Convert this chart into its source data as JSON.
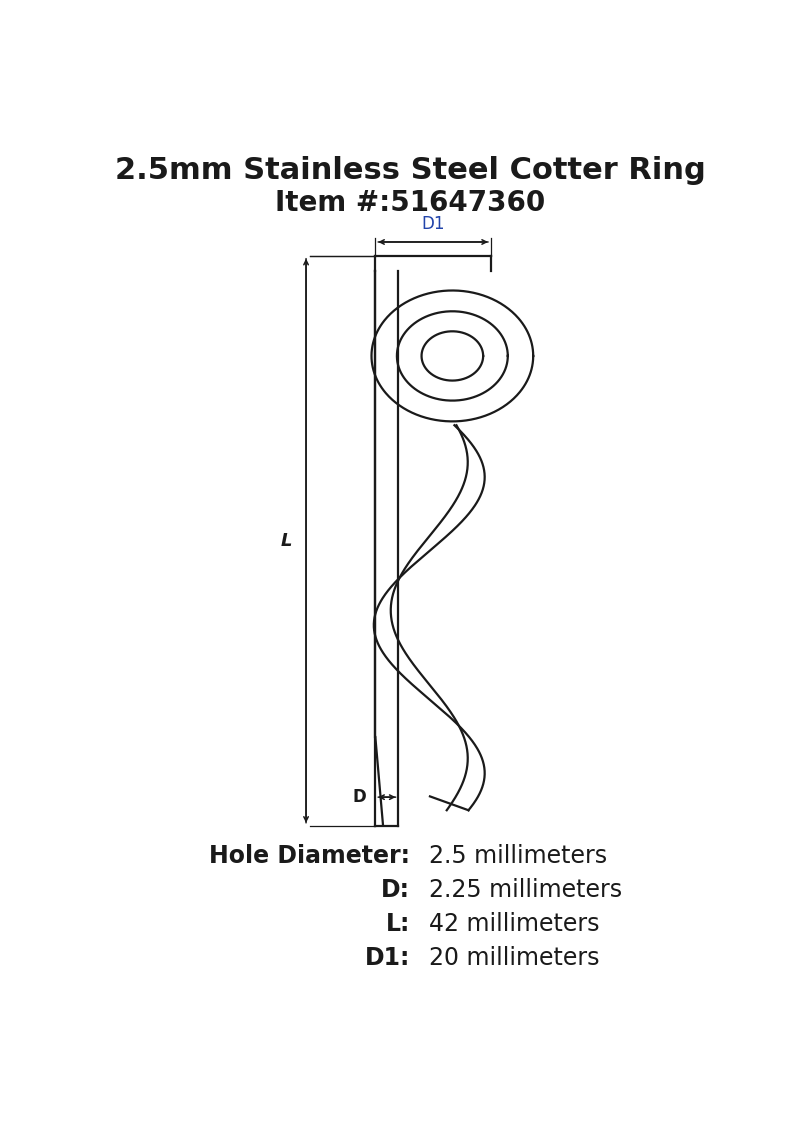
{
  "title_line1": "2.5mm Stainless Steel Cotter Ring",
  "title_line2": "Item #:51647360",
  "title_fontsize": 22,
  "subtitle_fontsize": 20,
  "background_color": "#ffffff",
  "line_color": "#1a1a1a",
  "text_color": "#1a1a1a",
  "dim_label_color": "#2244aa",
  "specs": [
    {
      "label": "Hole Diameter:",
      "value": "2.5 millimeters"
    },
    {
      "label": "D:",
      "value": "2.25 millimeters"
    },
    {
      "label": "L:",
      "value": "42 millimeters"
    },
    {
      "label": "D1:",
      "value": "20 millimeters"
    }
  ],
  "spec_fontsize": 17,
  "lw": 1.6
}
